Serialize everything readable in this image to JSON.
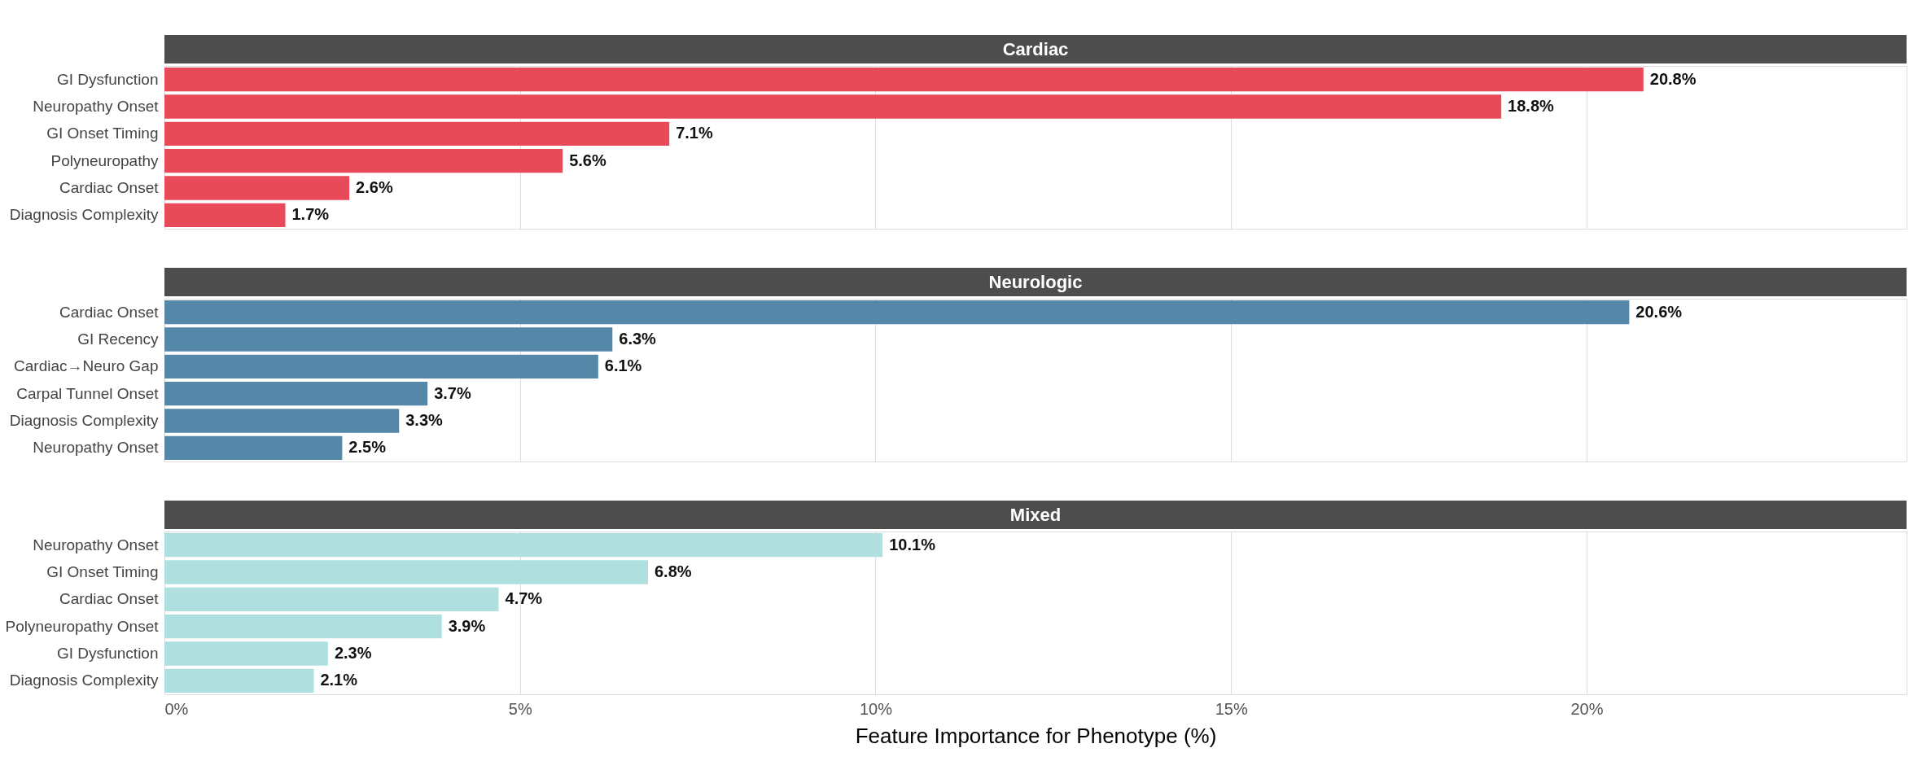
{
  "chart_data": [
    {
      "type": "bar",
      "orientation": "horizontal",
      "title": "Cardiac",
      "categories": [
        "GI Dysfunction",
        "Neuropathy Onset",
        "GI Onset Timing",
        "Polyneuropathy",
        "Cardiac Onset",
        "Diagnosis Complexity"
      ],
      "values": [
        20.8,
        18.8,
        7.1,
        5.6,
        2.6,
        1.7
      ],
      "value_labels": [
        "20.8%",
        "18.8%",
        "7.1%",
        "5.6%",
        "2.6%",
        "1.7%"
      ],
      "color": "#e84a5a",
      "xlim": [
        0,
        24.5
      ],
      "xticks": [
        {
          "value": 0,
          "label": null
        },
        {
          "value": 5,
          "label": null
        },
        {
          "value": 10,
          "label": null
        },
        {
          "value": 15,
          "label": null
        },
        {
          "value": 20,
          "label": null
        }
      ],
      "tick_labels": "y",
      "grid": "x"
    },
    {
      "type": "bar",
      "orientation": "horizontal",
      "title": "Neurologic",
      "categories": [
        "Cardiac Onset",
        "GI Recency",
        "Cardiac→Neuro Gap",
        "Carpal Tunnel Onset",
        "Diagnosis Complexity",
        "Neuropathy Onset"
      ],
      "values": [
        20.6,
        6.3,
        6.1,
        3.7,
        3.3,
        2.5
      ],
      "value_labels": [
        "20.6%",
        "6.3%",
        "6.1%",
        "3.7%",
        "3.3%",
        "2.5%"
      ],
      "color": "#5587a8",
      "xlim": [
        0,
        24.5
      ],
      "xticks": [
        {
          "value": 0,
          "label": null
        },
        {
          "value": 5,
          "label": null
        },
        {
          "value": 10,
          "label": null
        },
        {
          "value": 15,
          "label": null
        },
        {
          "value": 20,
          "label": null
        }
      ],
      "tick_labels": "y",
      "grid": "x"
    },
    {
      "type": "bar",
      "orientation": "horizontal",
      "title": "Mixed",
      "xlabel": "Feature Importance for Phenotype (%)",
      "categories": [
        "Neuropathy Onset",
        "GI Onset Timing",
        "Cardiac Onset",
        "Polyneuropathy Onset",
        "GI Dysfunction",
        "Diagnosis Complexity"
      ],
      "values": [
        10.1,
        6.8,
        4.7,
        3.9,
        2.3,
        2.1
      ],
      "value_labels": [
        "10.1%",
        "6.8%",
        "4.7%",
        "3.9%",
        "2.3%",
        "2.1%"
      ],
      "color": "#b0dfe0",
      "xlim": [
        0,
        24.5
      ],
      "xticks": [
        {
          "value": 0,
          "label": "0%"
        },
        {
          "value": 5,
          "label": "5%"
        },
        {
          "value": 10,
          "label": "10%"
        },
        {
          "value": 15,
          "label": "15%"
        },
        {
          "value": 20,
          "label": "20%"
        }
      ],
      "grid": "x"
    }
  ]
}
